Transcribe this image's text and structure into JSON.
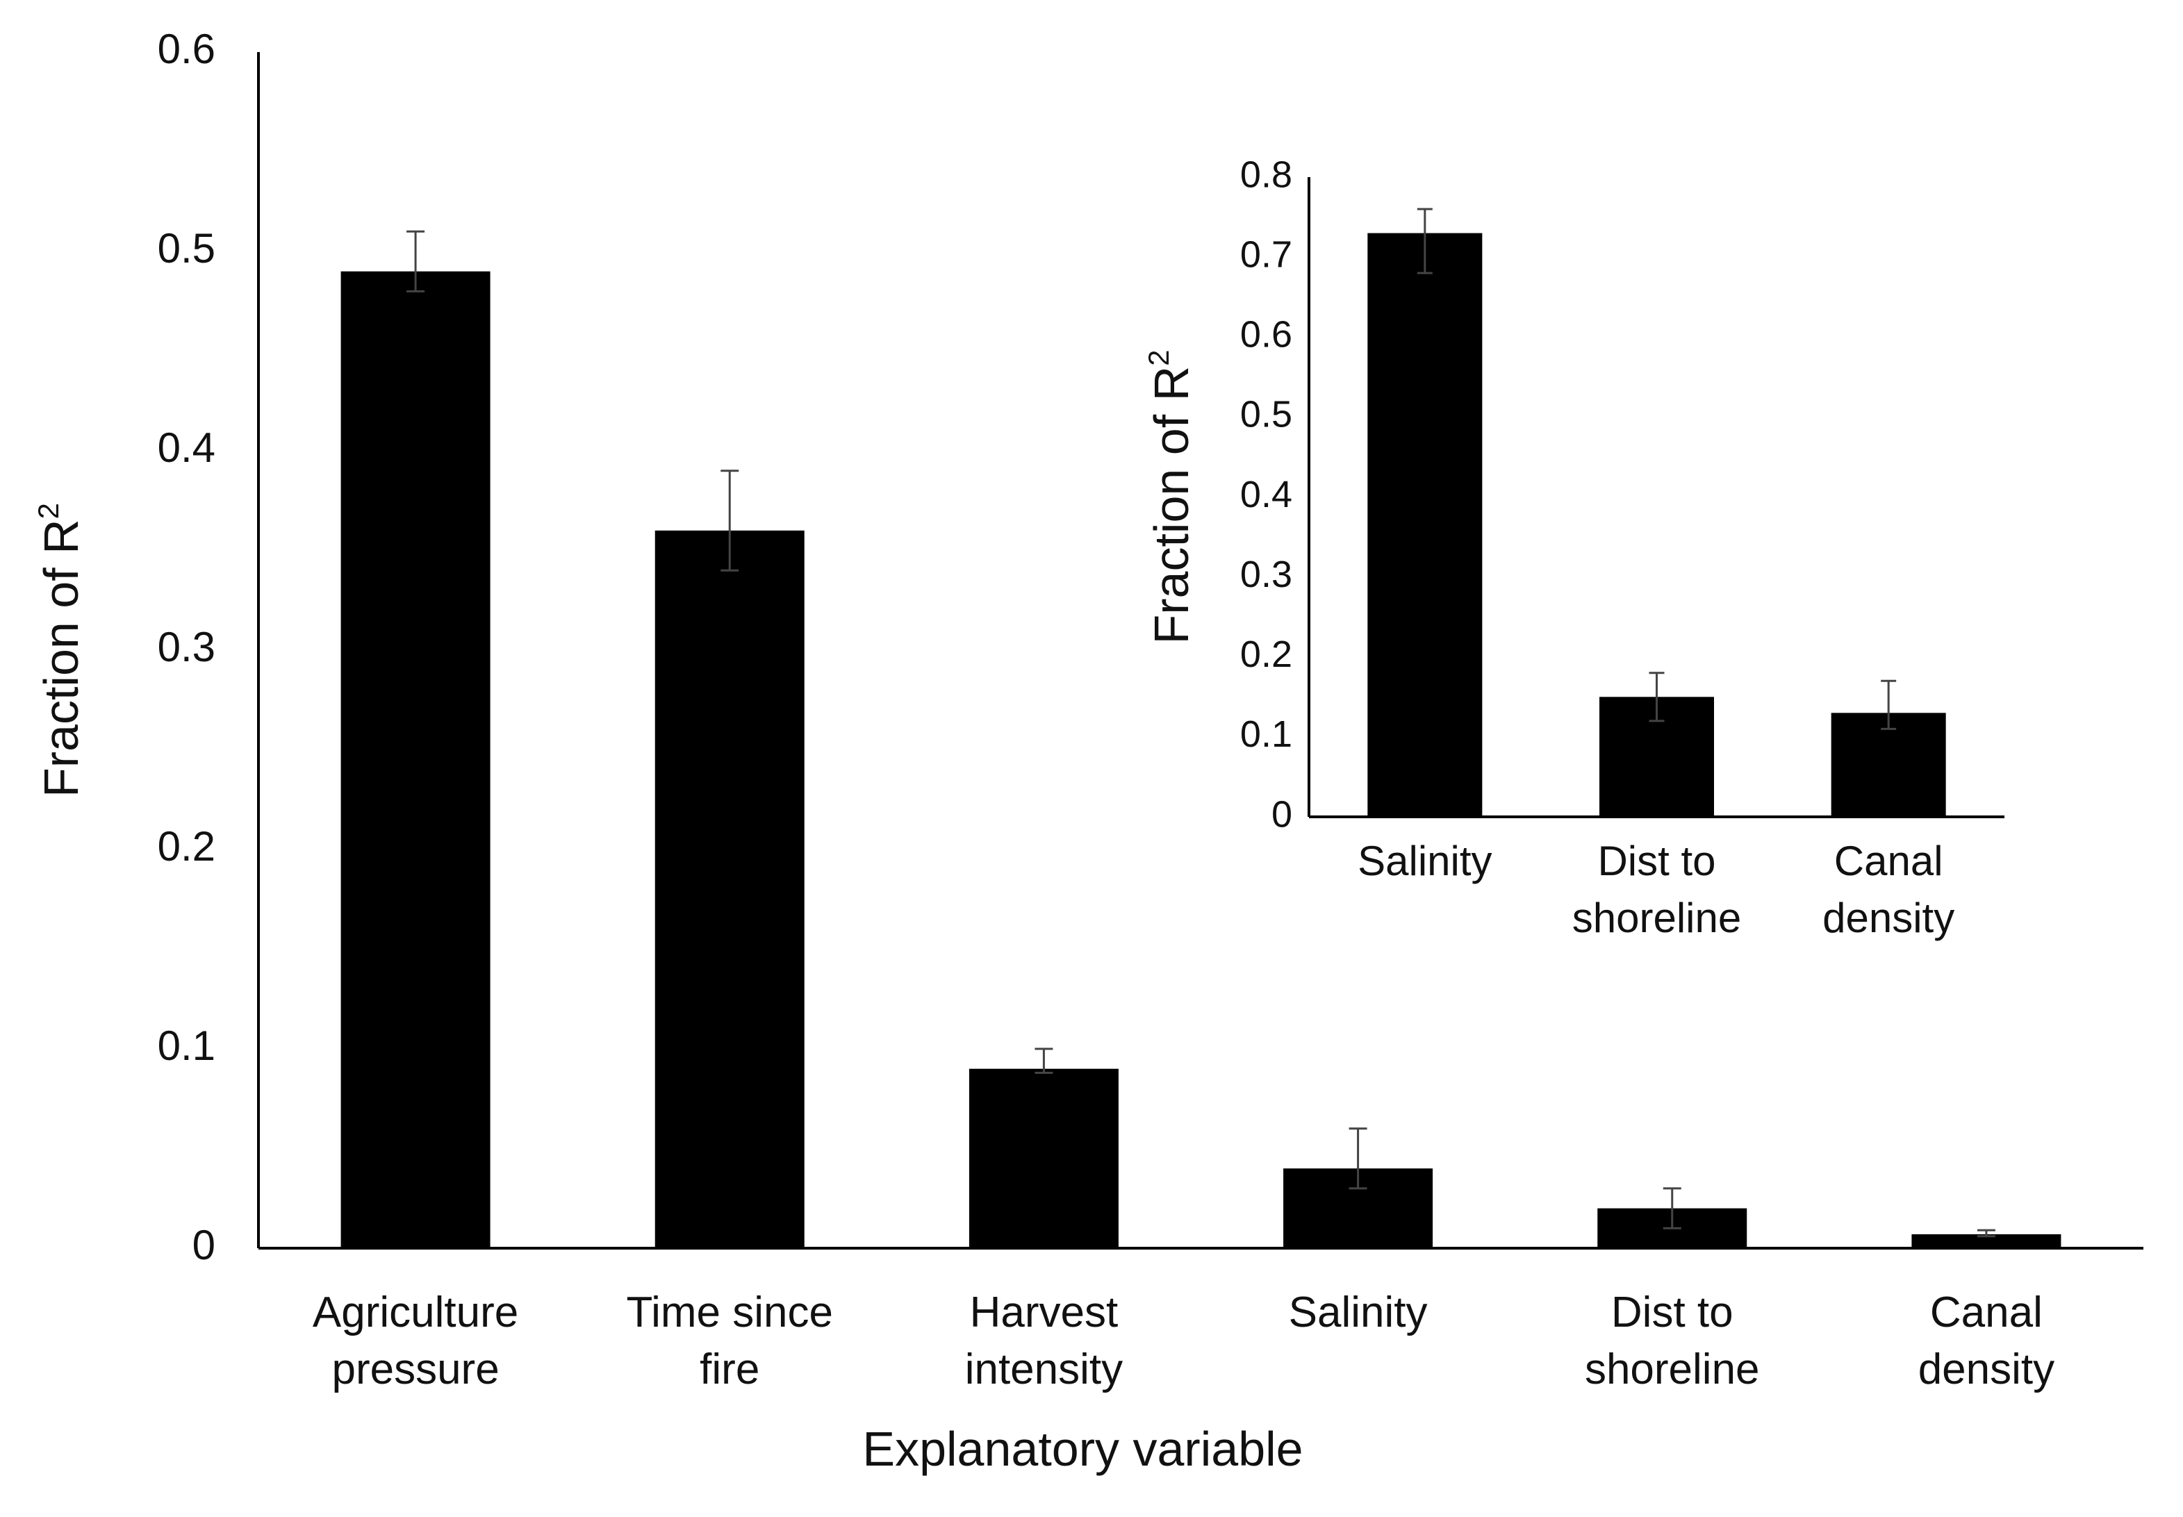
{
  "chart_data": [
    {
      "id": "main",
      "type": "bar",
      "categories": [
        [
          "Agriculture",
          "pressure"
        ],
        [
          "Time since",
          "fire"
        ],
        [
          "Harvest",
          "intensity"
        ],
        [
          "Salinity"
        ],
        [
          "Dist to",
          "shoreline"
        ],
        [
          "Canal",
          "density"
        ]
      ],
      "values": [
        0.49,
        0.36,
        0.09,
        0.04,
        0.02,
        0.007
      ],
      "error_low": [
        0.48,
        0.34,
        0.088,
        0.03,
        0.01,
        0.006
      ],
      "error_high": [
        0.51,
        0.39,
        0.1,
        0.06,
        0.03,
        0.009
      ],
      "title": "",
      "xlabel": "Explanatory variable",
      "ylabel": "Fraction of R",
      "ylabel_sup": "2",
      "ylim": [
        0,
        0.6
      ],
      "yticks": [
        "0",
        "0.1",
        "0.2",
        "0.3",
        "0.4",
        "0.5",
        "0.6"
      ],
      "bar_color": "#000000",
      "grid": false
    },
    {
      "id": "inset",
      "type": "bar",
      "categories": [
        [
          "Salinity"
        ],
        [
          "Dist to",
          "shoreline"
        ],
        [
          "Canal",
          "density"
        ]
      ],
      "values": [
        0.73,
        0.15,
        0.13
      ],
      "error_low": [
        0.68,
        0.12,
        0.11
      ],
      "error_high": [
        0.76,
        0.18,
        0.17
      ],
      "title": "",
      "xlabel": "",
      "ylabel": "Fraction of R",
      "ylabel_sup": "2",
      "ylim": [
        0,
        0.8
      ],
      "yticks": [
        "0",
        "0.1",
        "0.2",
        "0.3",
        "0.4",
        "0.5",
        "0.6",
        "0.7",
        "0.8"
      ],
      "bar_color": "#000000",
      "grid": false
    }
  ]
}
